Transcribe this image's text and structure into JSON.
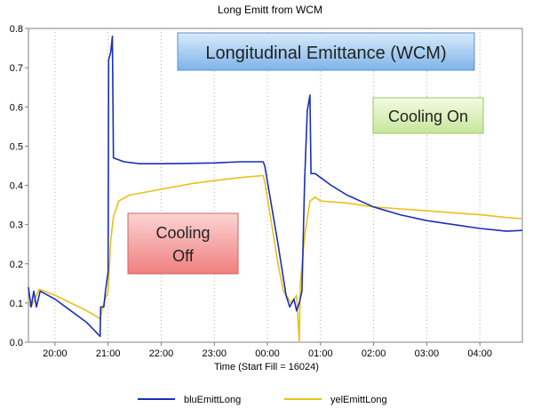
{
  "chart_data": {
    "type": "line",
    "title": "Long Emitt from WCM",
    "xlabel": "Time (Start Fill = 16024)",
    "ylabel": "",
    "x_unit": "hours",
    "xlim": [
      19.5,
      28.8
    ],
    "ylim": [
      0.0,
      0.8
    ],
    "yticks": [
      0.0,
      0.1,
      0.2,
      0.3,
      0.4,
      0.5,
      0.6,
      0.7,
      0.8
    ],
    "xticks": [
      {
        "value": 20,
        "label": "20:00"
      },
      {
        "value": 21,
        "label": "21:00"
      },
      {
        "value": 22,
        "label": "22:00"
      },
      {
        "value": 23,
        "label": "23:00"
      },
      {
        "value": 24,
        "label": "00:00"
      },
      {
        "value": 25,
        "label": "01:00"
      },
      {
        "value": 26,
        "label": "02:00"
      },
      {
        "value": 27,
        "label": "03:00"
      },
      {
        "value": 28,
        "label": "04:00"
      }
    ],
    "grid": {
      "x": true,
      "y": false,
      "style": "dotted"
    },
    "legend_position": "bottom",
    "series": [
      {
        "name": "bluEmittLong",
        "color": "#1a2fb8",
        "points": [
          [
            19.5,
            0.14
          ],
          [
            19.55,
            0.09
          ],
          [
            19.6,
            0.13
          ],
          [
            19.65,
            0.09
          ],
          [
            19.72,
            0.13
          ],
          [
            20.0,
            0.11
          ],
          [
            20.3,
            0.08
          ],
          [
            20.6,
            0.05
          ],
          [
            20.85,
            0.015
          ],
          [
            20.86,
            0.09
          ],
          [
            20.92,
            0.09
          ],
          [
            20.95,
            0.13
          ],
          [
            21.0,
            0.18
          ],
          [
            21.01,
            0.72
          ],
          [
            21.05,
            0.74
          ],
          [
            21.08,
            0.78
          ],
          [
            21.1,
            0.47
          ],
          [
            21.3,
            0.46
          ],
          [
            21.6,
            0.455
          ],
          [
            22.0,
            0.455
          ],
          [
            22.5,
            0.456
          ],
          [
            23.0,
            0.457
          ],
          [
            23.5,
            0.46
          ],
          [
            23.92,
            0.46
          ],
          [
            23.95,
            0.45
          ],
          [
            24.2,
            0.25
          ],
          [
            24.35,
            0.12
          ],
          [
            24.42,
            0.09
          ],
          [
            24.5,
            0.11
          ],
          [
            24.55,
            0.08
          ],
          [
            24.6,
            0.1
          ],
          [
            24.65,
            0.13
          ],
          [
            24.7,
            0.41
          ],
          [
            24.75,
            0.59
          ],
          [
            24.8,
            0.63
          ],
          [
            24.82,
            0.43
          ],
          [
            24.9,
            0.43
          ],
          [
            25.0,
            0.42
          ],
          [
            25.2,
            0.4
          ],
          [
            25.5,
            0.375
          ],
          [
            26.0,
            0.345
          ],
          [
            26.5,
            0.325
          ],
          [
            27.0,
            0.31
          ],
          [
            27.5,
            0.3
          ],
          [
            28.0,
            0.29
          ],
          [
            28.5,
            0.283
          ],
          [
            28.8,
            0.285
          ]
        ]
      },
      {
        "name": "yelEmittLong",
        "color": "#e8c11a",
        "points": [
          [
            19.5,
            0.1
          ],
          [
            19.55,
            0.09
          ],
          [
            19.62,
            0.11
          ],
          [
            19.7,
            0.135
          ],
          [
            20.0,
            0.12
          ],
          [
            20.3,
            0.1
          ],
          [
            20.6,
            0.08
          ],
          [
            20.85,
            0.06
          ],
          [
            20.92,
            0.1
          ],
          [
            21.0,
            0.13
          ],
          [
            21.05,
            0.26
          ],
          [
            21.1,
            0.32
          ],
          [
            21.2,
            0.36
          ],
          [
            21.4,
            0.375
          ],
          [
            21.8,
            0.385
          ],
          [
            22.2,
            0.395
          ],
          [
            22.6,
            0.405
          ],
          [
            23.0,
            0.412
          ],
          [
            23.5,
            0.42
          ],
          [
            23.92,
            0.425
          ],
          [
            23.95,
            0.41
          ],
          [
            24.2,
            0.2
          ],
          [
            24.3,
            0.13
          ],
          [
            24.45,
            0.1
          ],
          [
            24.55,
            0.12
          ],
          [
            24.6,
            0.0
          ],
          [
            24.62,
            0.15
          ],
          [
            24.7,
            0.27
          ],
          [
            24.8,
            0.36
          ],
          [
            24.9,
            0.37
          ],
          [
            25.0,
            0.36
          ],
          [
            25.5,
            0.355
          ],
          [
            26.0,
            0.345
          ],
          [
            26.5,
            0.34
          ],
          [
            27.0,
            0.335
          ],
          [
            27.5,
            0.33
          ],
          [
            28.0,
            0.325
          ],
          [
            28.5,
            0.318
          ],
          [
            28.8,
            0.315
          ]
        ]
      }
    ],
    "annotations": [
      {
        "text": "Longitudinal Emittance (WCM)",
        "style": "blue-box"
      },
      {
        "text": "Cooling On",
        "style": "green-box"
      },
      {
        "text_lines": [
          "Cooling",
          "Off"
        ],
        "style": "red-box"
      }
    ]
  }
}
